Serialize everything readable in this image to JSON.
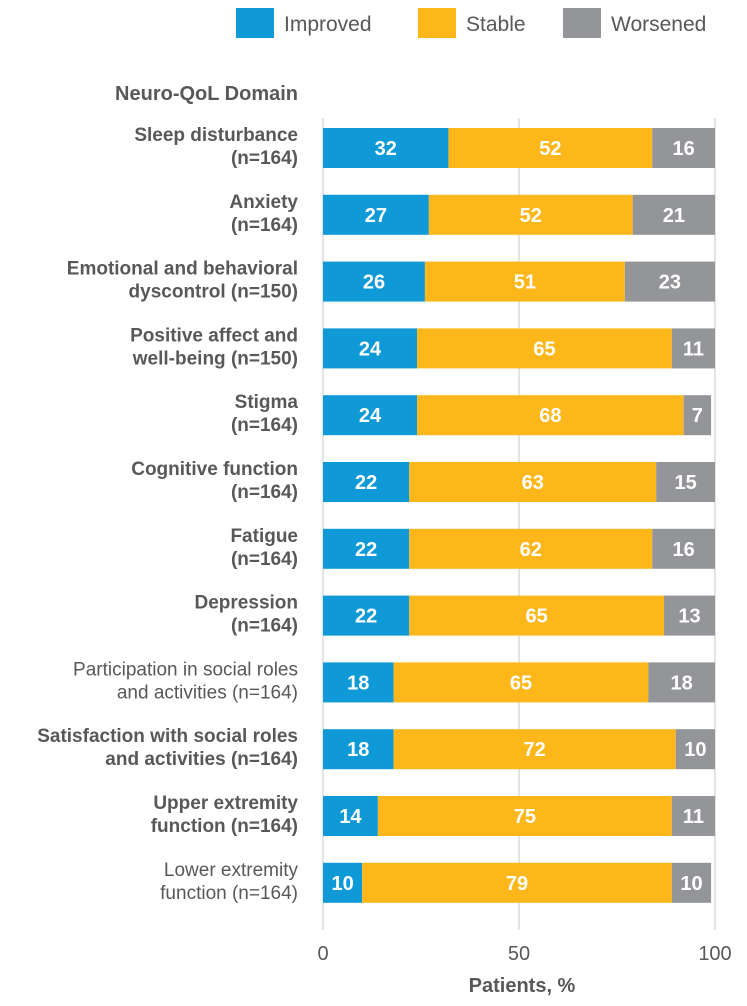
{
  "chart_data": {
    "type": "bar",
    "orientation": "horizontal",
    "stacked": true,
    "category_header": "Neuro-QoL Domain",
    "xlabel": "Patients, %",
    "xlim": [
      0,
      100
    ],
    "xticks": [
      "0",
      "50",
      "100"
    ],
    "xtick_values": [
      0,
      50,
      100
    ],
    "grid": true,
    "legend_position": "top-right",
    "categories": [
      {
        "lines": [
          "Sleep disturbance",
          "(n=164)"
        ],
        "bold": true
      },
      {
        "lines": [
          "Anxiety",
          "(n=164)"
        ],
        "bold": true
      },
      {
        "lines": [
          "Emotional and behavioral",
          "dyscontrol (n=150)"
        ],
        "bold": true
      },
      {
        "lines": [
          "Positive affect and",
          "well-being (n=150)"
        ],
        "bold": true
      },
      {
        "lines": [
          "Stigma",
          "(n=164)"
        ],
        "bold": true
      },
      {
        "lines": [
          "Cognitive function",
          "(n=164)"
        ],
        "bold": true
      },
      {
        "lines": [
          "Fatigue",
          "(n=164)"
        ],
        "bold": true
      },
      {
        "lines": [
          "Depression",
          "(n=164)"
        ],
        "bold": true
      },
      {
        "lines": [
          "Participation in social roles",
          "and activities (n=164)"
        ],
        "bold": false
      },
      {
        "lines": [
          "Satisfaction with social roles",
          "and activities (n=164)"
        ],
        "bold": true
      },
      {
        "lines": [
          "Upper extremity",
          "function (n=164)"
        ],
        "bold": true
      },
      {
        "lines": [
          "Lower extremity",
          "function (n=164)"
        ],
        "bold": false
      }
    ],
    "series": [
      {
        "name": "Improved",
        "color": "#0f9ad7",
        "values": [
          32,
          27,
          26,
          24,
          24,
          22,
          22,
          22,
          18,
          18,
          14,
          10
        ]
      },
      {
        "name": "Stable",
        "color": "#fdb71a",
        "values": [
          52,
          52,
          51,
          65,
          68,
          63,
          62,
          65,
          65,
          72,
          75,
          79
        ]
      },
      {
        "name": "Worsened",
        "color": "#939598",
        "values": [
          16,
          21,
          23,
          11,
          7,
          15,
          16,
          13,
          18,
          10,
          11,
          10
        ]
      }
    ]
  }
}
